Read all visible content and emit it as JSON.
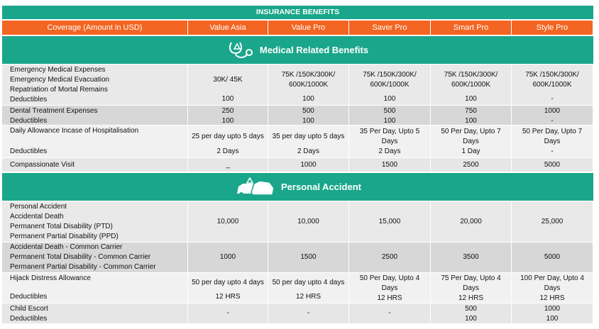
{
  "header": {
    "title": "INSURANCE BENEFITS"
  },
  "columns": [
    "Coverage (Amount in USD)",
    "Value Asia",
    "Value Pro",
    "Saver Pro",
    "Smart Pro",
    "Style Pro"
  ],
  "sections": [
    {
      "title": "Medical Related Benefits",
      "rows": [
        {
          "label": [
            "Emergency Medical Expenses",
            "Emergency Medical Evacuation",
            "Repatriation of Mortal Remains",
            "Deductibles"
          ],
          "cells": [
            [
              "30K/ 45K",
              "100"
            ],
            [
              "75K /150K/300K/ 600K/1000K",
              "100"
            ],
            [
              "75K /150K/300K/ 600K/1000K",
              "100"
            ],
            [
              "75K /150K/300K/ 600K/1000K",
              "100"
            ],
            [
              "75K /150K/300K/ 600K/1000K",
              "-"
            ]
          ]
        },
        {
          "label": [
            "Dental Treatment Expenses",
            "Deductibles"
          ],
          "cells": [
            [
              "250",
              "100"
            ],
            [
              "500",
              "100"
            ],
            [
              "500",
              "100"
            ],
            [
              "750",
              "100"
            ],
            [
              "1000",
              "-"
            ]
          ]
        },
        {
          "label": [
            "Daily Allowance Incase of Hospitalisation",
            "Deductibles"
          ],
          "cells": [
            [
              "25 per day upto 5 days",
              "2 Days"
            ],
            [
              "35 per day upto 5 days",
              "2 Days"
            ],
            [
              "35 Per Day, Upto 5 Days",
              "2 Days"
            ],
            [
              "50 Per Day, Upto 7 Days",
              "1 Day"
            ],
            [
              "50 Per Day, Upto 7 Days",
              "-"
            ]
          ]
        },
        {
          "label": [
            "Compassionate Visit"
          ],
          "cells": [
            [
              "_"
            ],
            [
              "1000"
            ],
            [
              "1500"
            ],
            [
              "2500"
            ],
            [
              "5000"
            ]
          ]
        }
      ]
    },
    {
      "title": "Personal Accident",
      "rows": [
        {
          "label": [
            "Personal Accident",
            "Accidental Death",
            "Permanent Total Disability (PTD)",
            "Permanent Partial Disability (PPD)"
          ],
          "cells": [
            [
              "10,000"
            ],
            [
              "10,000"
            ],
            [
              "15,000"
            ],
            [
              "20,000"
            ],
            [
              "25,000"
            ]
          ]
        },
        {
          "label": [
            "Accidental Death - Common Carrier",
            "Permanent Total Disability - Common Carrier",
            "Permanent Partial Disability - Common Carrier"
          ],
          "cells": [
            [
              "1000"
            ],
            [
              "1500"
            ],
            [
              "2500"
            ],
            [
              "3500"
            ],
            [
              "5000"
            ]
          ]
        },
        {
          "label": [
            "Hijack Distress Allowance",
            "Deductibles"
          ],
          "cells": [
            [
              "50 per day upto 4 days",
              "12 HRS"
            ],
            [
              "50 per day upto 4 days",
              "12 HRS"
            ],
            [
              "50 Per Day, Upto 4 Days",
              "12 HRS"
            ],
            [
              "75 Per Day, Upto 4 Days",
              "12 HRS"
            ],
            [
              "100 Per Day, Upto 4 Days",
              "12 HRS"
            ]
          ]
        },
        {
          "label": [
            "Child Escort",
            "Deductibles"
          ],
          "cells": [
            [
              "-"
            ],
            [
              "-"
            ],
            [
              "-"
            ],
            [
              "500",
              "100"
            ],
            [
              "1000",
              "100"
            ]
          ]
        }
      ]
    }
  ]
}
